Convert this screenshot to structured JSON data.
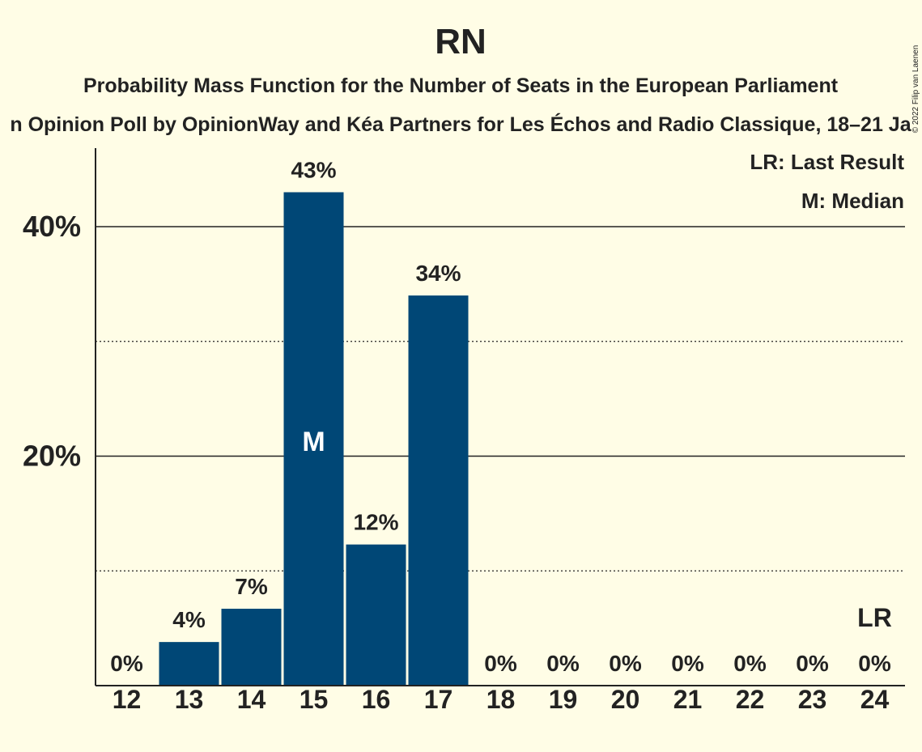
{
  "header": {
    "title": "RN",
    "subtitle": "Probability Mass Function for the Number of Seats in the European Parliament",
    "source": "n Opinion Poll by OpinionWay and Kéa Partners for Les Échos and Radio Classique, 18–21 Ja",
    "copyright": "© 2022 Filip van Laenen"
  },
  "legend": {
    "last_result": "LR: Last Result",
    "median": "M: Median"
  },
  "colors": {
    "background": "#fffde6",
    "bar": "#004776",
    "text": "#222222"
  },
  "chart_data": {
    "type": "bar",
    "title": "RN",
    "categories": [
      "12",
      "13",
      "14",
      "15",
      "16",
      "17",
      "18",
      "19",
      "20",
      "21",
      "22",
      "23",
      "24"
    ],
    "values": [
      0,
      3.8,
      6.7,
      43,
      12.3,
      34,
      0,
      0,
      0,
      0,
      0,
      0,
      0
    ],
    "labels": [
      "0%",
      "4%",
      "7%",
      "43%",
      "12%",
      "34%",
      "0%",
      "0%",
      "0%",
      "0%",
      "0%",
      "0%",
      "0%"
    ],
    "y_ticks": [
      {
        "value": 20,
        "label": "20%"
      },
      {
        "value": 40,
        "label": "40%"
      }
    ],
    "dotted_gridlines": [
      10,
      30
    ],
    "ylim": [
      0,
      47
    ],
    "median": {
      "category": "15",
      "marker": "M"
    },
    "last_result": {
      "category": "24",
      "marker": "LR"
    },
    "legend_position": "top-right"
  }
}
